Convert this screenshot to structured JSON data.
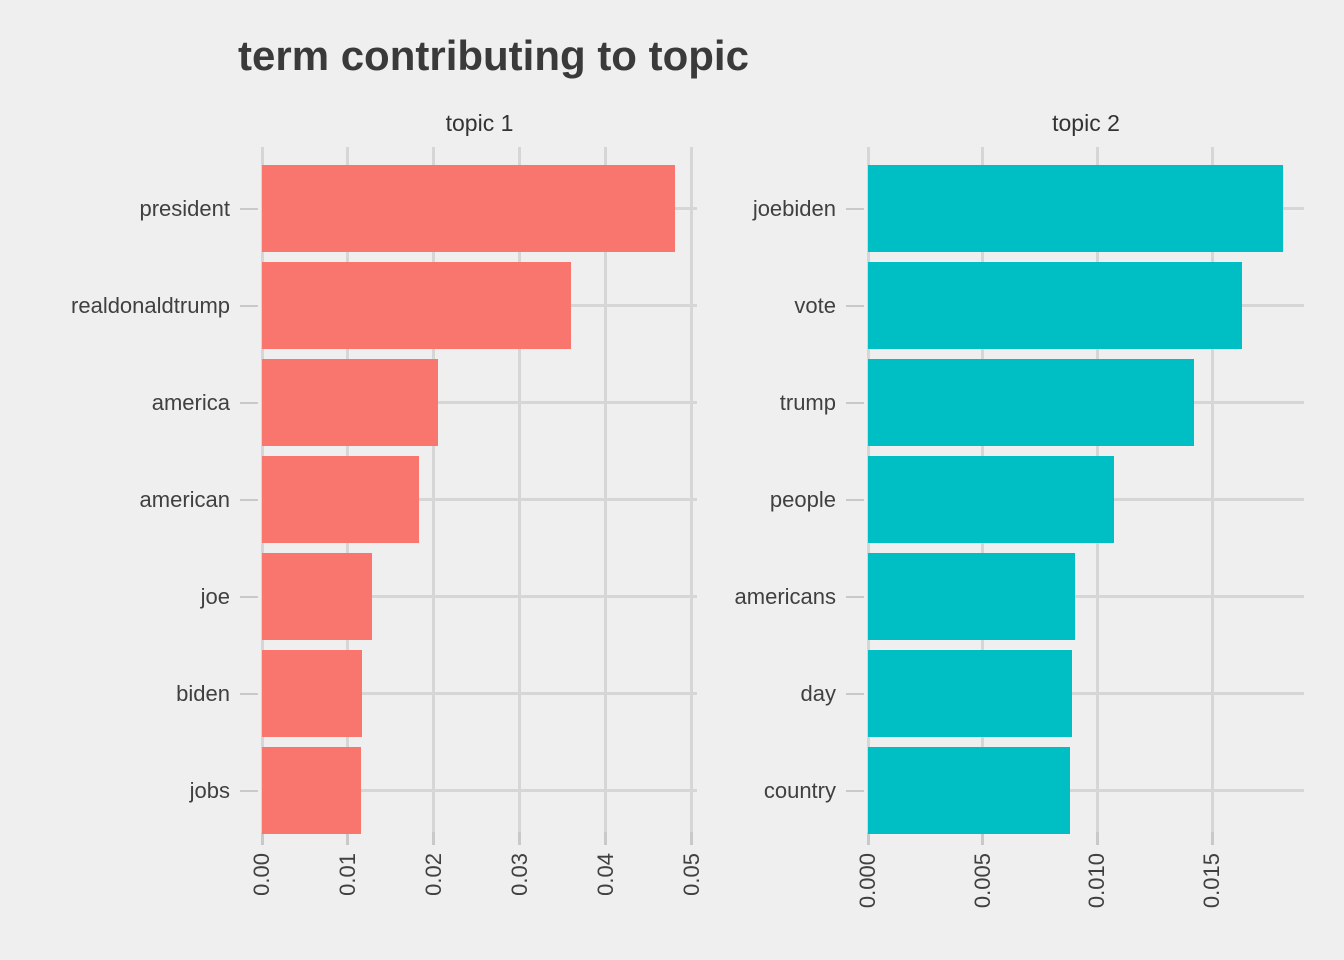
{
  "figure": {
    "title": "term contributing to topic",
    "background_color": "#EFEFEF",
    "gridline_color": "#D6D6D6",
    "tick_color": "#C9C9C9",
    "text_color": "#404040",
    "title_color": "#3A3A3A"
  },
  "chart_data": [
    {
      "type": "bar",
      "orientation": "horizontal",
      "facet_label": "topic 1",
      "bar_color": "#F8766D",
      "categories": [
        "president",
        "realdonaldtrump",
        "america",
        "american",
        "joe",
        "biden",
        "jobs"
      ],
      "values": [
        0.048,
        0.036,
        0.0205,
        0.0183,
        0.0128,
        0.0116,
        0.0115
      ],
      "x_tick_labels": [
        "0.00",
        "0.01",
        "0.02",
        "0.03",
        "0.04",
        "0.05"
      ],
      "x_tick_values": [
        0,
        0.01,
        0.02,
        0.03,
        0.04,
        0.05
      ],
      "xlim": [
        0,
        0.0506
      ],
      "xlabel": "",
      "ylabel": "",
      "grid": true,
      "legend": false
    },
    {
      "type": "bar",
      "orientation": "horizontal",
      "facet_label": "topic 2",
      "bar_color": "#00BFC4",
      "categories": [
        "joebiden",
        "vote",
        "trump",
        "people",
        "americans",
        "day",
        "country"
      ],
      "values": [
        0.0181,
        0.0163,
        0.0142,
        0.0107,
        0.009,
        0.0089,
        0.0088
      ],
      "x_tick_labels": [
        "0.000",
        "0.005",
        "0.010",
        "0.015"
      ],
      "x_tick_values": [
        0,
        0.005,
        0.01,
        0.015
      ],
      "xlim": [
        0,
        0.019
      ],
      "xlabel": "",
      "ylabel": "",
      "grid": true,
      "legend": false
    }
  ]
}
